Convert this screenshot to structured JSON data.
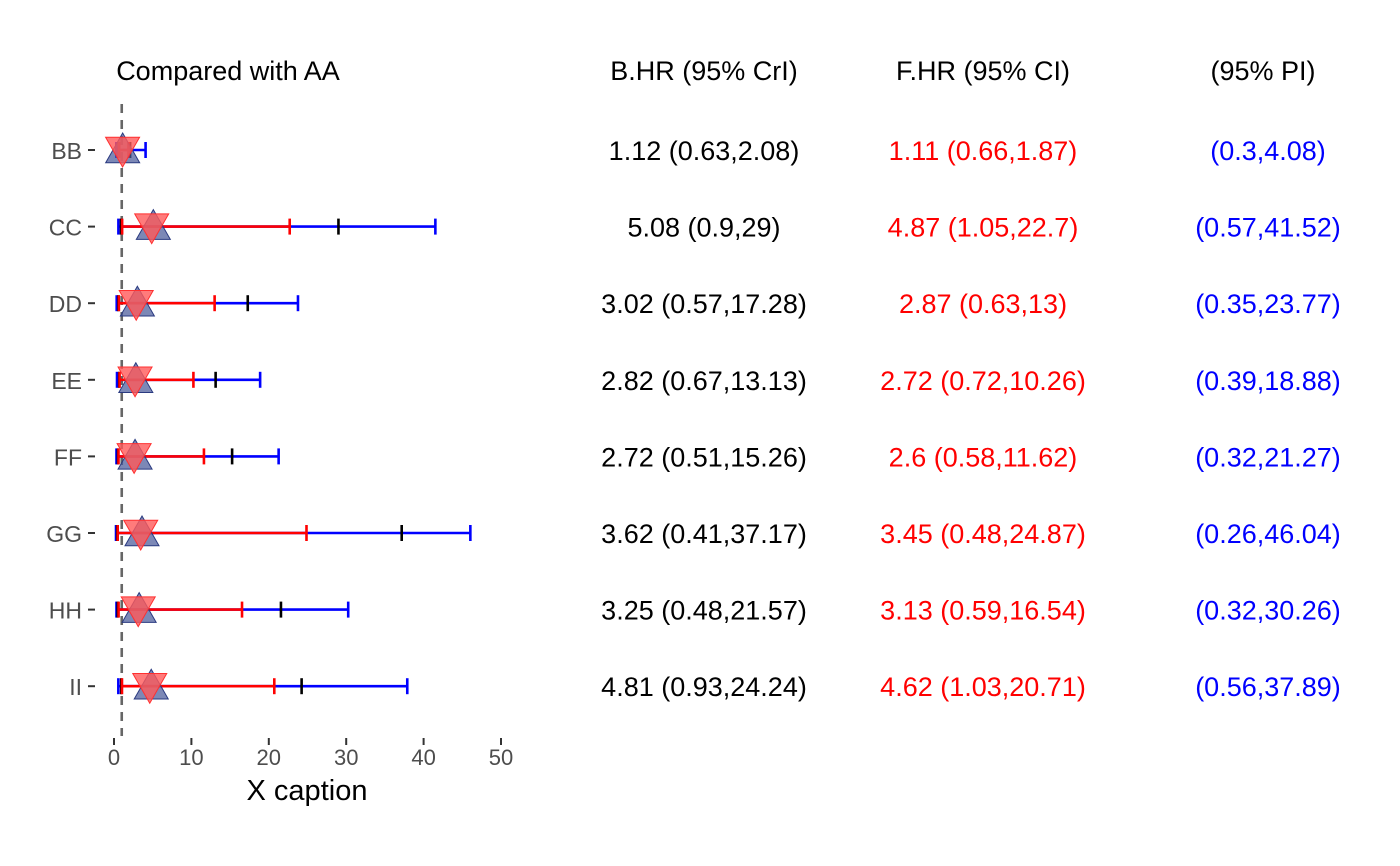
{
  "chart_data": {
    "type": "forest",
    "title": "Compared with AA",
    "xlabel": "X caption",
    "xlim": [
      0,
      50
    ],
    "xticks": [
      "0",
      "10",
      "20",
      "30",
      "40",
      "50"
    ],
    "reference_line_x": 1,
    "categories": [
      "BB",
      "CC",
      "DD",
      "EE",
      "FF",
      "GG",
      "HH",
      "II"
    ],
    "colors": {
      "bayes": "#0000ff",
      "freq": "#ff0000",
      "pi_tick": "#000000",
      "triangle_up": "#4a5a9a",
      "triangle_down": "#ff5a5a",
      "refline": "#666666"
    },
    "rows": [
      {
        "label": "BB",
        "bayes_hr": 1.12,
        "bayes_lo": 0.63,
        "bayes_hi": 2.08,
        "freq_hr": 1.11,
        "freq_lo": 0.66,
        "freq_hi": 1.87,
        "pi_lo": 0.3,
        "pi_hi": 4.08
      },
      {
        "label": "CC",
        "bayes_hr": 5.08,
        "bayes_lo": 0.9,
        "bayes_hi": 29,
        "freq_hr": 4.87,
        "freq_lo": 1.05,
        "freq_hi": 22.7,
        "pi_lo": 0.57,
        "pi_hi": 41.52
      },
      {
        "label": "DD",
        "bayes_hr": 3.02,
        "bayes_lo": 0.57,
        "bayes_hi": 17.28,
        "freq_hr": 2.87,
        "freq_lo": 0.63,
        "freq_hi": 13,
        "pi_lo": 0.35,
        "pi_hi": 23.77
      },
      {
        "label": "EE",
        "bayes_hr": 2.82,
        "bayes_lo": 0.67,
        "bayes_hi": 13.13,
        "freq_hr": 2.72,
        "freq_lo": 0.72,
        "freq_hi": 10.26,
        "pi_lo": 0.39,
        "pi_hi": 18.88
      },
      {
        "label": "FF",
        "bayes_hr": 2.72,
        "bayes_lo": 0.51,
        "bayes_hi": 15.26,
        "freq_hr": 2.6,
        "freq_lo": 0.58,
        "freq_hi": 11.62,
        "pi_lo": 0.32,
        "pi_hi": 21.27
      },
      {
        "label": "GG",
        "bayes_hr": 3.62,
        "bayes_lo": 0.41,
        "bayes_hi": 37.17,
        "freq_hr": 3.45,
        "freq_lo": 0.48,
        "freq_hi": 24.87,
        "pi_lo": 0.26,
        "pi_hi": 46.04
      },
      {
        "label": "HH",
        "bayes_hr": 3.25,
        "bayes_lo": 0.48,
        "bayes_hi": 21.57,
        "freq_hr": 3.13,
        "freq_lo": 0.59,
        "freq_hi": 16.54,
        "pi_lo": 0.32,
        "pi_hi": 30.26
      },
      {
        "label": "II",
        "bayes_hr": 4.81,
        "bayes_lo": 0.93,
        "bayes_hi": 24.24,
        "freq_hr": 4.62,
        "freq_lo": 1.03,
        "freq_hi": 20.71,
        "pi_lo": 0.56,
        "pi_hi": 37.89
      }
    ]
  },
  "columns": {
    "bayes": {
      "header": "B.HR (95% CrI)",
      "values": [
        "1.12 (0.63,2.08)",
        "5.08 (0.9,29)",
        "3.02 (0.57,17.28)",
        "2.82 (0.67,13.13)",
        "2.72 (0.51,15.26)",
        "3.62 (0.41,37.17)",
        "3.25 (0.48,21.57)",
        "4.81 (0.93,24.24)"
      ]
    },
    "freq": {
      "header": "F.HR (95% CI)",
      "values": [
        "1.11 (0.66,1.87)",
        "4.87 (1.05,22.7)",
        "2.87 (0.63,13)",
        "2.72 (0.72,10.26)",
        "2.6 (0.58,11.62)",
        "3.45 (0.48,24.87)",
        "3.13 (0.59,16.54)",
        "4.62 (1.03,20.71)"
      ]
    },
    "pi": {
      "header": "(95% PI)",
      "values": [
        "(0.3,4.08)",
        "(0.57,41.52)",
        "(0.35,23.77)",
        "(0.39,18.88)",
        "(0.32,21.27)",
        "(0.26,46.04)",
        "(0.32,30.26)",
        "(0.56,37.89)"
      ]
    }
  }
}
